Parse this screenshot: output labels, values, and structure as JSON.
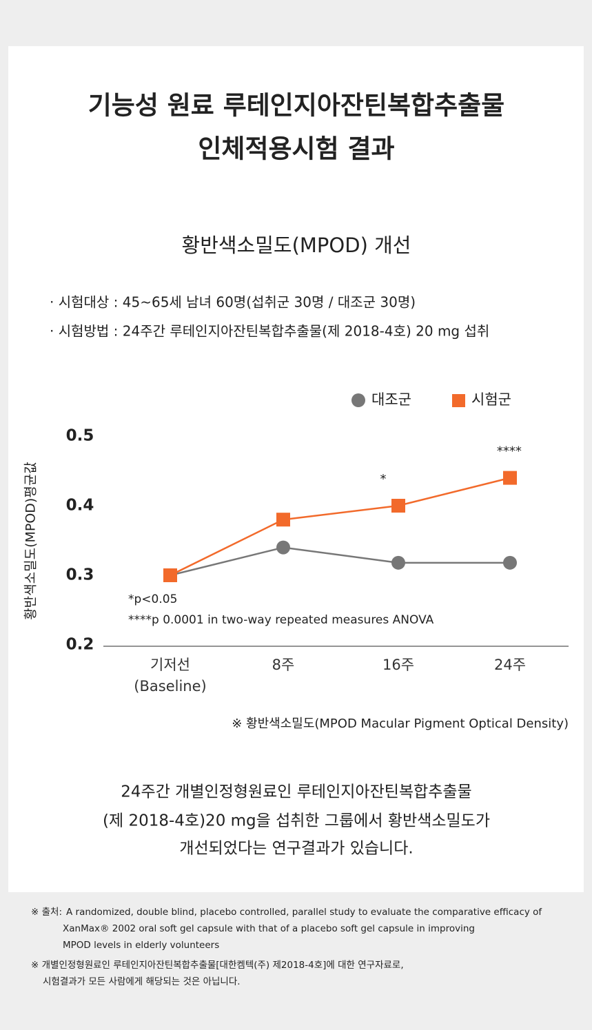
{
  "header": {
    "title_lines": [
      "기능성 원료 루테인지아잔틴복합추출물",
      "인체적용시험 결과"
    ]
  },
  "chart_data": {
    "type": "line",
    "title": "황반색소밀도(MPOD) 개선",
    "bullets": [
      "· 시험대상 : 45~65세 남녀 60명(섭취군 30명 / 대조군 30명)",
      "· 시험방법 : 24주간 루테인지아잔틴복합추출물(제 2018-4호) 20 mg 섭취"
    ],
    "categories": [
      "기저선\n(Baseline)",
      "8주",
      "16주",
      "24주"
    ],
    "series": [
      {
        "name": "대조군",
        "color": "#777777",
        "marker": "circle",
        "values": [
          0.3,
          0.34,
          0.318,
          0.318
        ]
      },
      {
        "name": "시험군",
        "color": "#f26a2b",
        "marker": "square",
        "values": [
          0.3,
          0.38,
          0.4,
          0.44
        ]
      }
    ],
    "significance": [
      null,
      null,
      "*",
      "****"
    ],
    "ylabel": "황반색소밀도(MPOD)평균값",
    "ylim": [
      0.2,
      0.5
    ],
    "yticks": [
      0.2,
      0.3,
      0.4,
      0.5
    ],
    "stat_notes": [
      "*p<0.05",
      "****p 0.0001 in two-way repeated measures ANOVA"
    ],
    "note": "※ 황반색소밀도(MPOD Macular Pigment Optical Density)"
  },
  "summary": {
    "lines": [
      "24주간 개별인정형원료인 루테인지아잔틴복합추출물",
      "(제 2018-4호)20 mg을 섭취한 그룹에서 황반색소밀도가",
      "개선되었다는 연구결과가 있습니다."
    ]
  },
  "footnotes": {
    "source_label": "※ 출처:",
    "source_lines": [
      "A randomized, double blind, placebo controlled, parallel study to evaluate the comparative efficacy of",
      "XanMax® 2002 oral soft gel capsule with that of a placebo soft gel capsule in improving",
      "MPOD levels in elderly volunteers"
    ],
    "disclaimer_lines": [
      "※ 개별인정형원료인 루테인지아잔틴복합추출물[대한켐텍(주) 제2018-4호]에 대한 연구자료로,",
      "시험결과가 모든 사람에게 해당되는 것은 아닙니다."
    ]
  }
}
